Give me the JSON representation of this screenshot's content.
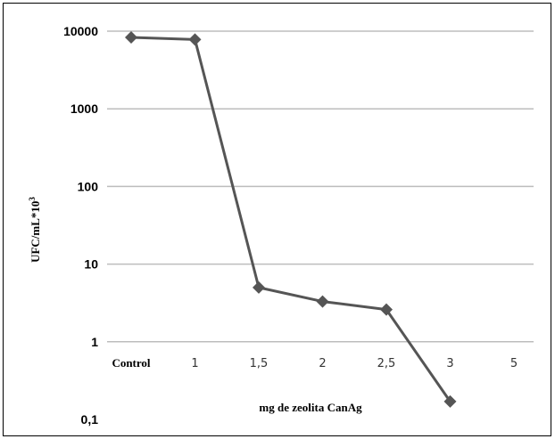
{
  "chart_data": {
    "type": "line",
    "title": "",
    "xlabel": "mg de zeolita CanAg",
    "ylabel_main": "UFC/mL*10",
    "ylabel_sup": "3",
    "yscale": "log",
    "ylim": [
      0.1,
      10000
    ],
    "yticks": [
      "0,1",
      "1",
      "10",
      "100",
      "1000",
      "10000"
    ],
    "grid": true,
    "legend": "none",
    "categories": [
      "Control",
      "1",
      "1,5",
      "2",
      "2,5",
      "3",
      "5"
    ],
    "series": [
      {
        "values": [
          8300,
          7800,
          5,
          3.3,
          2.6,
          0.17,
          null
        ],
        "color": "#555555",
        "marker": "diamond"
      }
    ]
  }
}
